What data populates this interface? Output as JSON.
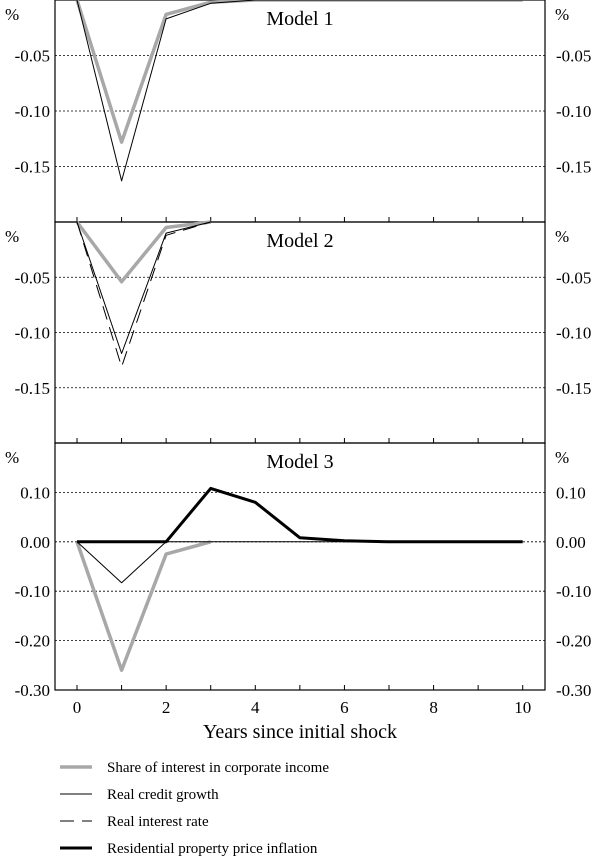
{
  "chart_data": {
    "type": "line",
    "xlabel": "Years since initial shock",
    "x_ticks": [
      0,
      2,
      4,
      6,
      8,
      10
    ],
    "legend": [
      {
        "name": "Share of interest in corporate income",
        "color": "#a8a8a8",
        "width": 3.5,
        "dash": ""
      },
      {
        "name": "Real credit growth",
        "color": "#000000",
        "width": 1,
        "dash": ""
      },
      {
        "name": "Real interest rate",
        "color": "#000000",
        "width": 1,
        "dash": "14,8"
      },
      {
        "name": "Residential property price inflation",
        "color": "#000000",
        "width": 3,
        "dash": ""
      }
    ],
    "panels": [
      {
        "title": "Model 1",
        "unit": "%",
        "ylim": [
          -0.2,
          0
        ],
        "y_ticks": [
          -0.05,
          -0.1,
          -0.15
        ],
        "y_tick_labels": [
          "-0.05",
          "-0.10",
          "-0.15"
        ],
        "series": [
          {
            "name": "Share of interest in corporate income",
            "x": [
              0,
              1,
              2,
              3,
              4,
              5,
              6,
              7,
              8,
              9,
              10
            ],
            "y": [
              0,
              -0.128,
              -0.013,
              -0.002,
              0,
              0,
              0,
              0,
              0,
              0,
              0
            ]
          },
          {
            "name": "Real credit growth",
            "x": [
              0,
              1,
              2,
              3,
              4,
              5,
              6,
              7,
              8,
              9,
              10
            ],
            "y": [
              0,
              -0.163,
              -0.017,
              -0.003,
              0,
              0,
              0,
              0,
              0,
              0,
              0
            ]
          }
        ]
      },
      {
        "title": "Model 2",
        "unit": "%",
        "ylim": [
          -0.2,
          0
        ],
        "y_ticks": [
          -0.05,
          -0.1,
          -0.15
        ],
        "y_tick_labels": [
          "-0.05",
          "-0.10",
          "-0.15"
        ],
        "series": [
          {
            "name": "Share of interest in corporate income",
            "x": [
              0,
              1,
              2,
              3
            ],
            "y": [
              0,
              -0.054,
              -0.005,
              0
            ]
          },
          {
            "name": "Real credit growth",
            "x": [
              0,
              1,
              2,
              3
            ],
            "y": [
              0,
              -0.119,
              -0.01,
              0
            ]
          },
          {
            "name": "Real interest rate",
            "x": [
              0,
              1,
              2,
              3
            ],
            "y": [
              0,
              -0.131,
              -0.012,
              0
            ]
          }
        ]
      },
      {
        "title": "Model 3",
        "unit": "%",
        "ylim": [
          -0.3,
          0.2
        ],
        "y_ticks": [
          0.1,
          0.0,
          -0.1,
          -0.2,
          -0.3
        ],
        "y_tick_labels": [
          "0.10",
          "0.00",
          "-0.10",
          "-0.20",
          "-0.30"
        ],
        "series": [
          {
            "name": "Share of interest in corporate income",
            "x": [
              0,
              1,
              2,
              3
            ],
            "y": [
              0,
              -0.26,
              -0.025,
              0
            ]
          },
          {
            "name": "Real credit growth",
            "x": [
              0,
              1,
              2,
              3,
              4,
              5,
              6,
              7,
              8,
              9,
              10
            ],
            "y": [
              0,
              -0.083,
              0,
              0,
              0,
              0,
              0,
              0,
              0,
              0,
              0
            ]
          },
          {
            "name": "Residential property price inflation",
            "x": [
              0,
              1,
              2,
              3,
              4,
              5,
              6,
              7,
              8,
              9,
              10
            ],
            "y": [
              0,
              0,
              0,
              0.108,
              0.08,
              0.008,
              0.002,
              0,
              0,
              0,
              0
            ]
          }
        ]
      }
    ]
  }
}
